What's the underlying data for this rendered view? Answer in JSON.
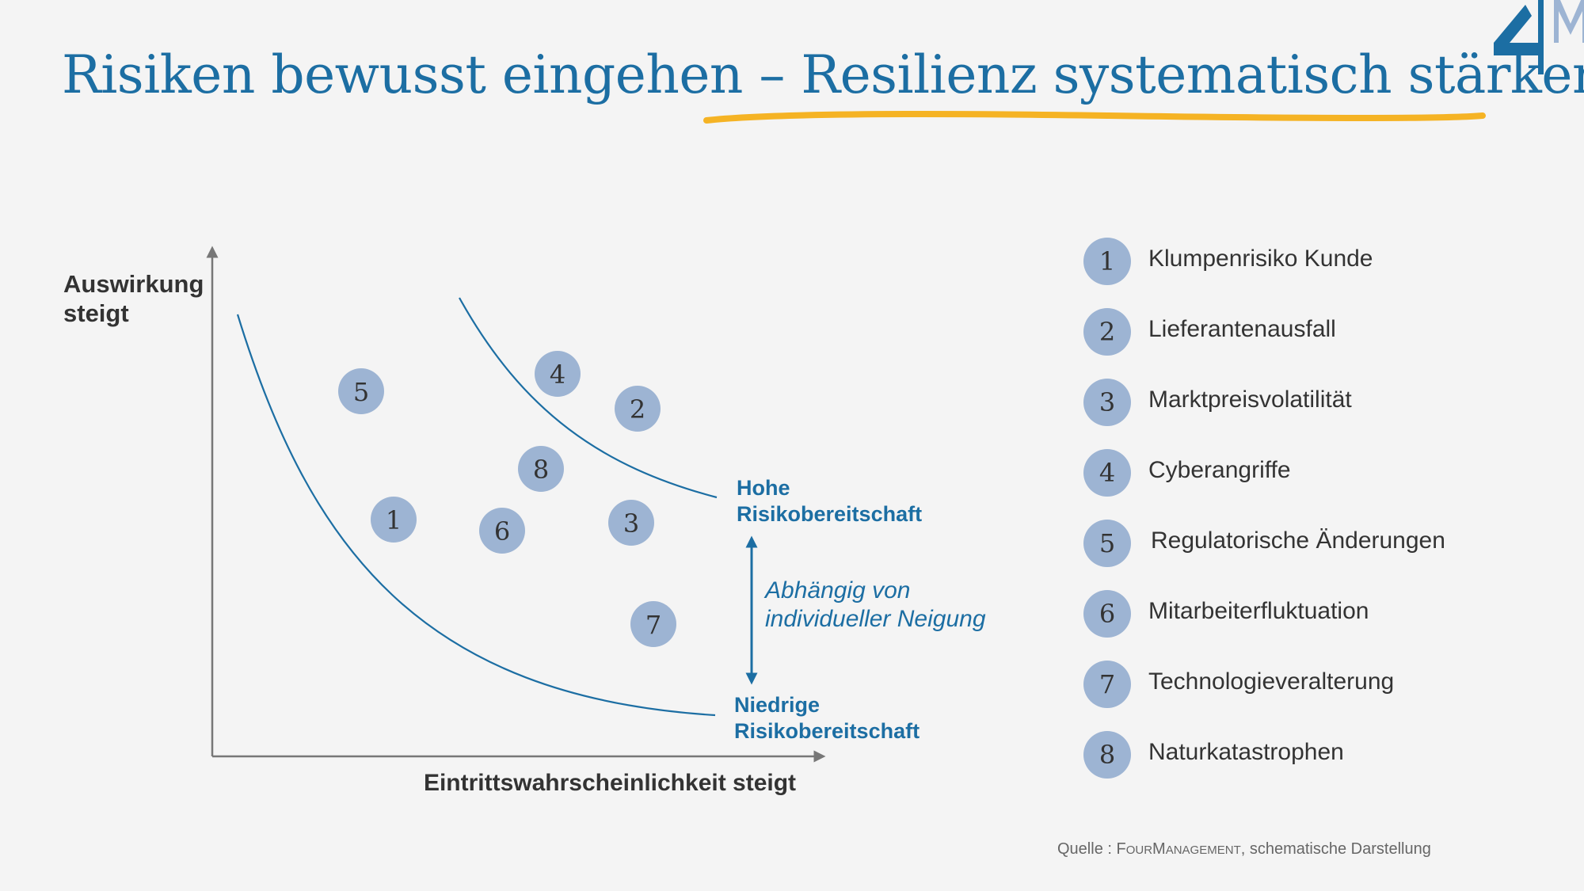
{
  "title": "Risiken bewusst eingehen – Resilienz systematisch stärken",
  "axes": {
    "y_label_line1": "Auswirkung",
    "y_label_line2": "steigt",
    "x_label": "Eintrittswahrscheinlichkeit steigt"
  },
  "curves": {
    "high_line1": "Hohe",
    "high_line2": "Risikobereitschaft",
    "low_line1": "Niedrige",
    "low_line2": "Risikobereitschaft"
  },
  "note": {
    "line1": "Abhängig von",
    "line2": "individueller Neigung"
  },
  "risk_points": [
    {
      "id": "1"
    },
    {
      "id": "2"
    },
    {
      "id": "3"
    },
    {
      "id": "4"
    },
    {
      "id": "5"
    },
    {
      "id": "6"
    },
    {
      "id": "7"
    },
    {
      "id": "8"
    }
  ],
  "legend": [
    {
      "number": "1",
      "label": "Klumpenrisiko Kunde"
    },
    {
      "number": "2",
      "label": "Lieferantenausfall"
    },
    {
      "number": "3",
      "label": "Marktpreisvolatilität"
    },
    {
      "number": "4",
      "label": "Cyberangriffe"
    },
    {
      "number": "5",
      "label": "Regulatorische Änderungen"
    },
    {
      "number": "6",
      "label": "Mitarbeiterfluktuation"
    },
    {
      "number": "7",
      "label": "Technologieveralterung"
    },
    {
      "number": "8",
      "label": "Naturkatastrophen"
    }
  ],
  "source": {
    "prefix": "Quelle : ",
    "brand_a": "F",
    "brand_b": "our",
    "brand_c": "M",
    "brand_d": "anagement",
    "suffix": ", schematische Darstellung"
  },
  "colors": {
    "primary": "#1c6ea3",
    "point": "#9db4d3",
    "highlight": "#f5b324",
    "axis": "#777777"
  }
}
